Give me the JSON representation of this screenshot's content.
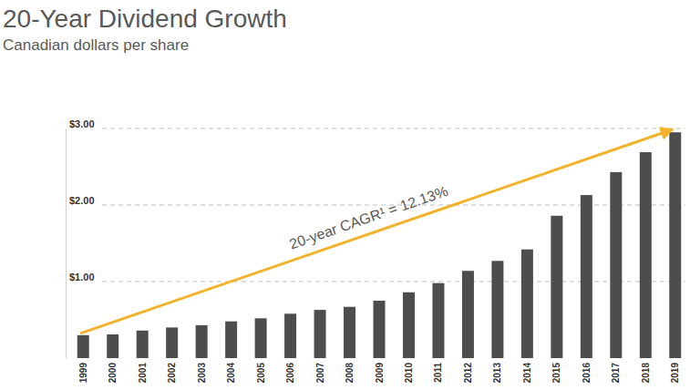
{
  "chart_data": {
    "type": "bar",
    "title": "20-Year Dividend Growth",
    "subtitle": "Canadian dollars per share",
    "categories": [
      "1999",
      "2000",
      "2001",
      "2002",
      "2003",
      "2004",
      "2005",
      "2006",
      "2007",
      "2008",
      "2009",
      "2010",
      "2011",
      "2012",
      "2013",
      "2014",
      "2015",
      "2016",
      "2017",
      "2018",
      "2019"
    ],
    "values": [
      0.3,
      0.31,
      0.36,
      0.4,
      0.43,
      0.48,
      0.52,
      0.58,
      0.63,
      0.67,
      0.75,
      0.86,
      0.98,
      1.14,
      1.27,
      1.42,
      1.86,
      2.13,
      2.43,
      2.69,
      2.95
    ],
    "color": "#4d4d4d",
    "ylim": [
      0,
      3
    ],
    "yticks": [
      {
        "value": 1,
        "label": "$1.00"
      },
      {
        "value": 2,
        "label": "$2.00"
      },
      {
        "value": 3,
        "label": "$3.00"
      }
    ],
    "grid": true,
    "annotation": "20-year CAGR¹ = 12.13%"
  }
}
